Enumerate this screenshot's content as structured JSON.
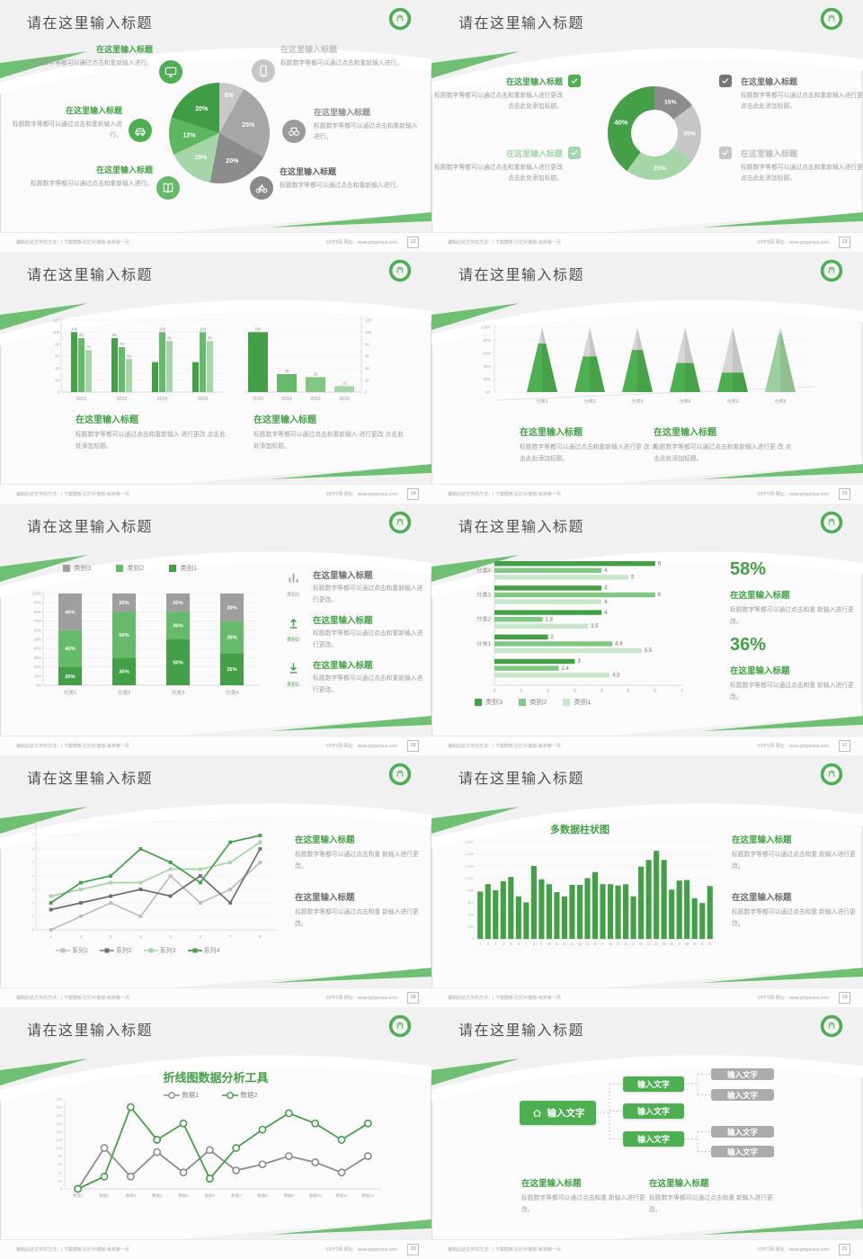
{
  "theme": {
    "green": "#43a047",
    "green_mid": "#66bb6a",
    "green_light": "#a5d6a7",
    "green_pale": "#c8e6c9",
    "gray_dark": "#8c8c8c",
    "gray_mid": "#a6a6a6",
    "gray_light": "#c9c9c9",
    "title_text": "#4f4f4f",
    "body_text": "#9c9c9c"
  },
  "common": {
    "slide_title": "请在这里输入标题",
    "footer_left": "编辑此处文字的方法：| 下载模板-幻灯片模板-就到第一页",
    "footer_right": "©PPT网 网址：www.pptgenius.com"
  },
  "slides": {
    "s1": {
      "page": "12",
      "left": [
        {
          "icon": "monitor",
          "t": "在这里输入标题",
          "b": "标题数字等都可以通过点击和重新输入进行。"
        },
        {
          "icon": "car",
          "t": "在这里输入标题",
          "b": "标题数字等都可以通过点击和重新输入进行。"
        },
        {
          "icon": "book",
          "t": "在这里输入标题",
          "b": "标题数字等都可以通过点击和重新输入进行。"
        }
      ],
      "right": [
        {
          "icon": "phone",
          "t": "在这里输入标题",
          "b": "标题数字等都可以通过点击和重新输入进行。"
        },
        {
          "icon": "binoculars",
          "t": "在这里输入标题",
          "b": "标题数字等都可以通过点击和重新输入进行。"
        },
        {
          "icon": "bicycle",
          "t": "在这里输入标题",
          "b": "标题数字等都可以通过点击和重新输入进行。"
        }
      ],
      "pie": {
        "type": "pie",
        "values": [
          8,
          25,
          20,
          15,
          12,
          20
        ],
        "labels": [
          "8%",
          "25%",
          "20%",
          "15%",
          "12%",
          "20%"
        ],
        "colors": [
          "#c9c9c9",
          "#a6a6a6",
          "#8c8c8c",
          "#a5d6a7",
          "#5db761",
          "#3f9d44"
        ]
      }
    },
    "s2": {
      "page": "13",
      "left": [
        {
          "t": "在这里输入标题",
          "tc": "#43a047",
          "chk": "#4caf50",
          "b": "标题数字等都可以通过点击和重新输入进行更改 点击此处添加标题。"
        },
        {
          "t": "在这里输入标题",
          "tc": "#a5d6a7",
          "chk": "#a5d6a7",
          "b": "标题数字等都可以通过点击和重新输入进行更改 点击此处添加标题。"
        }
      ],
      "right": [
        {
          "t": "在这里输入标题",
          "tc": "#6e6e6e",
          "chk": "#757575",
          "b": "标题数字等都可以通过点击和重新输入进行更改 点击此处添加标题。"
        },
        {
          "t": "在这里输入标题",
          "tc": "#bdbdbd",
          "chk": "#c6c6c6",
          "b": "标题数字等都可以通过点击和重新输入进行更改 点击此处添加标题。"
        }
      ],
      "donut": {
        "type": "pie",
        "values": [
          15,
          20,
          25,
          40
        ],
        "labels": [
          "15%",
          "20%",
          "25%",
          "40%"
        ],
        "colors": [
          "#8c8c8c",
          "#c6c6c6",
          "#a5d6a7",
          "#43a047"
        ]
      }
    },
    "s3": {
      "page": "14",
      "chartA": {
        "type": "bar",
        "cats": [
          "2010",
          "2012",
          "2014",
          "2016"
        ],
        "ymax": 120,
        "step": 20,
        "series": [
          {
            "n": "系列1",
            "c": "#43a047",
            "v": [
              100,
              90,
              50,
              50
            ],
            "lb": [
              "100",
              "90",
              "",
              ""
            ]
          },
          {
            "n": "系列2",
            "c": "#66bb6a",
            "v": [
              90,
              75,
              100,
              100
            ],
            "lb": [
              "90",
              "75",
              "100",
              "100"
            ]
          },
          {
            "n": "系列3",
            "c": "#a5d6a7",
            "v": [
              70,
              55,
              85,
              85
            ],
            "lb": [
              "70",
              "55",
              "85",
              "85"
            ]
          }
        ]
      },
      "chartB": {
        "type": "bar",
        "cats": [
          "2016",
          "2014",
          "2012",
          "2010"
        ],
        "v": [
          100,
          30,
          25,
          10
        ],
        "lb": [
          "100",
          "30",
          "25",
          "10"
        ],
        "colors": [
          "#43a047",
          "#66bb6a",
          "#81c784",
          "#a5d6a7"
        ],
        "ymax": 120,
        "step": 20
      },
      "blocks": [
        {
          "t": "在这里输入标题",
          "b": "标题数字等都可以通过点击和重新输入 进行更改 点击此处添加标题。"
        },
        {
          "t": "在这里输入标题",
          "b": "标题数字等都可以通过点击和重新输入 进行更改 点击此处添加标题。"
        }
      ]
    },
    "s4": {
      "page": "15",
      "pyr": {
        "type": "bar",
        "cats": [
          "分类1",
          "分类2",
          "分类3",
          "分类4",
          "分类5",
          "分类6"
        ],
        "pct": [
          75,
          55,
          65,
          45,
          30,
          90
        ],
        "colors": [
          "#4caf50",
          "#4caf50",
          "#4caf50",
          "#4caf50",
          "#4caf50",
          "#9ccf9e"
        ],
        "cap": "#d6d6d6"
      },
      "blocks": [
        {
          "t": "在这里输入标题",
          "b": "标题数字等都可以通过点击和重新输入进行更 改 点击此处添加标题。"
        },
        {
          "t": "在这里输入标题",
          "b": "标题数字等都可以通过点击和重新输入进行更 改 点击此处添加标题。"
        }
      ]
    },
    "s5": {
      "page": "16",
      "legend": [
        {
          "n": "类别3",
          "c": "#9e9e9e"
        },
        {
          "n": "类别2",
          "c": "#66bb6a"
        },
        {
          "n": "类别1",
          "c": "#43a047"
        }
      ],
      "stack": {
        "type": "bar",
        "cats": [
          "分类1",
          "分类2",
          "分类3",
          "分类4"
        ],
        "s1": {
          "n": "类别1",
          "c": "#43a047",
          "v": [
            20,
            30,
            50,
            35
          ]
        },
        "s2": {
          "n": "类别2",
          "c": "#66bb6a",
          "v": [
            40,
            50,
            30,
            35
          ]
        },
        "s3": {
          "n": "类别3",
          "c": "#9e9e9e",
          "v": [
            40,
            20,
            20,
            30
          ]
        }
      },
      "items": [
        {
          "icon": "bars",
          "ic": "#9e9e9e",
          "cap": "类别3",
          "tc": "#6e6e6e",
          "t": "在这里输入标题",
          "b": "标题数字等都可以通过点击和重新输入进行更改。"
        },
        {
          "icon": "arrow-up",
          "ic": "#43a047",
          "cap": "类别2",
          "tc": "#43a047",
          "t": "在这里输入标题",
          "b": "标题数字等都可以通过点击和重新输入进行更改。"
        },
        {
          "icon": "arrow-down",
          "ic": "#43a047",
          "cap": "类别1",
          "tc": "#43a047",
          "t": "在这里输入标题",
          "b": "标题数字等都可以通过点击和重新输入进行更改。"
        }
      ]
    },
    "s6": {
      "page": "17",
      "type": "bar",
      "groups": [
        {
          "label": "分类4",
          "v": [
            6,
            4,
            5
          ]
        },
        {
          "label": "分类3",
          "v": [
            4,
            6,
            4
          ]
        },
        {
          "label": "分类2",
          "v": [
            4,
            1.8,
            3.5
          ]
        },
        {
          "label": "分类1",
          "v": [
            2,
            4.4,
            5.5
          ]
        },
        {
          "label": "",
          "v": [
            3,
            2.4,
            4.3
          ]
        }
      ],
      "colors": [
        "#43a047",
        "#81c784",
        "#c8e6c9"
      ],
      "xmax": 7,
      "legend": [
        {
          "n": "类别3",
          "c": "#43a047"
        },
        {
          "n": "类别2",
          "c": "#81c784"
        },
        {
          "n": "类别1",
          "c": "#c8e6c9"
        }
      ],
      "stats": [
        {
          "pct": "58%",
          "t": "在这里输入标题",
          "b": "标题数字等都可以通过点击和重 新输入进行更改。"
        },
        {
          "pct": "36%",
          "t": "在这里输入标题",
          "b": "标题数字等都可以通过点击和重 新输入进行更改。"
        }
      ]
    },
    "s7": {
      "page": "18",
      "lines": {
        "type": "line",
        "x": [
          "1",
          "2",
          "3",
          "4",
          "5",
          "6",
          "7",
          "8"
        ],
        "ymax": 8,
        "series": [
          {
            "n": "系列1",
            "c": "#bdbdbd",
            "v": [
              0,
              1,
              2,
              1,
              4,
              2,
              3,
              5
            ]
          },
          {
            "n": "系列2",
            "c": "#6e6e6e",
            "v": [
              1.5,
              2,
              2.5,
              3,
              2.5,
              4,
              2,
              6
            ]
          },
          {
            "n": "系列3",
            "c": "#a5d6a7",
            "v": [
              2.5,
              3,
              3.5,
              3.5,
              4.5,
              4.5,
              5,
              6.5
            ]
          },
          {
            "n": "系列4",
            "c": "#43a047",
            "v": [
              2,
              3.5,
              4,
              6,
              5,
              3.5,
              6.5,
              7
            ]
          }
        ]
      },
      "blocks": [
        {
          "t": "在这里输入标题",
          "tc": "#43a047",
          "b": "标题数字等都可以通过点击和重 新输入进行更改。"
        },
        {
          "t": "在这里输入标题",
          "tc": "#6e6e6e",
          "b": "标题数字等都可以通过点击和重 新输入进行更改。"
        }
      ]
    },
    "s8": {
      "page": "19",
      "title": "多数据柱状图",
      "cols": {
        "type": "bar",
        "ymax": 1600,
        "step": 200,
        "v": [
          780,
          900,
          800,
          950,
          1020,
          700,
          600,
          1200,
          980,
          900,
          770,
          700,
          890,
          890,
          1000,
          1100,
          900,
          900,
          880,
          900,
          700,
          1190,
          1300,
          1450,
          1300,
          810,
          960,
          970,
          670,
          590,
          870
        ]
      },
      "blocks": [
        {
          "t": "在这里输入标题",
          "tc": "#43a047",
          "b": "标题数字等都可以通过点击和重 新输入进行更改。"
        },
        {
          "t": "在这里输入标题",
          "tc": "#6e6e6e",
          "b": "标题数字等都可以通过点击和重 新输入进行更改。"
        }
      ]
    },
    "s9": {
      "page": "20",
      "title": "折线图数据分析工具",
      "legend": [
        {
          "n": "数据1",
          "c": "#8c8c8c"
        },
        {
          "n": "数据2",
          "c": "#43a047"
        }
      ],
      "lines": {
        "type": "line",
        "x": [
          "数据1",
          "数据2",
          "数据3",
          "数据4",
          "数据5",
          "数据6",
          "数据7",
          "数据8",
          "数据9",
          "数据10",
          "数据11",
          "数据12"
        ],
        "ymax": 220,
        "series": [
          {
            "n": "数据1",
            "c": "#8c8c8c",
            "v": [
              0,
              100,
              30,
              90,
              40,
              95,
              45,
              60,
              80,
              65,
              40,
              80
            ]
          },
          {
            "n": "数据2",
            "c": "#43a047",
            "v": [
              0,
              30,
              200,
              120,
              160,
              25,
              100,
              145,
              185,
              160,
              120,
              160
            ]
          }
        ]
      }
    },
    "s10": {
      "page": "21",
      "root": "输入文字",
      "mids": [
        "输入文字",
        "输入文字",
        "输入文字"
      ],
      "leaves": [
        "输入文字",
        "输入文字",
        "输入文字",
        "输入文字"
      ],
      "blocks": [
        {
          "t": "在这里输入标题",
          "b": "标题数字等都可以通过点击和重 新输入进行更改。"
        },
        {
          "t": "在这里输入标题",
          "b": "标题数字等都可以通过点击和重 新输入进行更改。"
        }
      ]
    }
  }
}
